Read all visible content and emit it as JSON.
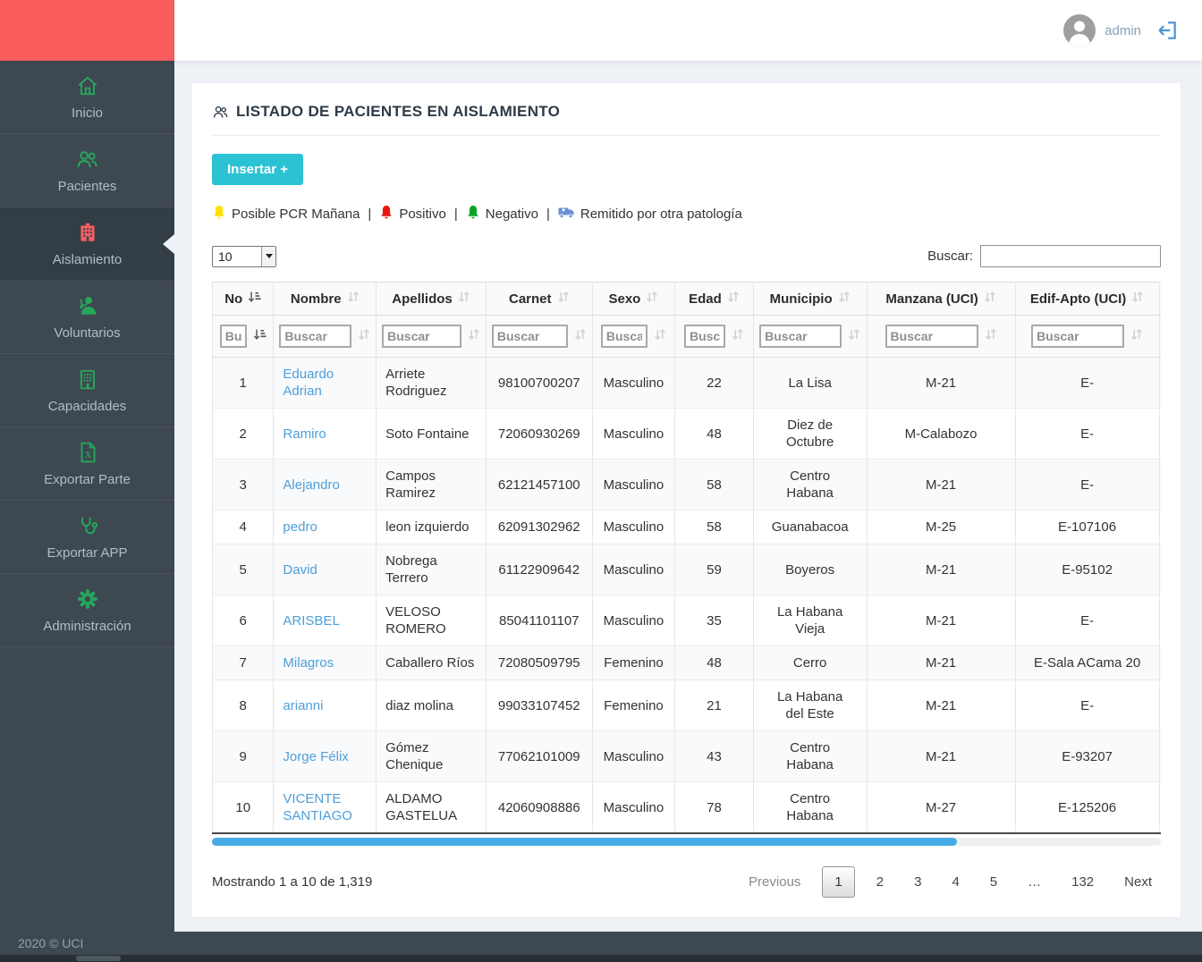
{
  "topbar": {
    "username": "admin"
  },
  "sidebar": {
    "items": [
      {
        "label": "Inicio",
        "icon": "home-icon",
        "active": false
      },
      {
        "label": "Pacientes",
        "icon": "patients-icon",
        "active": false
      },
      {
        "label": "Aislamiento",
        "icon": "hospital-icon",
        "active": true
      },
      {
        "label": "Voluntarios",
        "icon": "volunteer-icon",
        "active": false
      },
      {
        "label": "Capacidades",
        "icon": "building-icon",
        "active": false
      },
      {
        "label": "Exportar Parte",
        "icon": "excel-file-icon",
        "active": false
      },
      {
        "label": "Exportar APP",
        "icon": "stethoscope-icon",
        "active": false
      },
      {
        "label": "Administración",
        "icon": "gear-icon",
        "active": false
      }
    ],
    "colors": {
      "bg": "#3e4851",
      "accent_green": "#26a65b",
      "accent_red": "#f55f5f",
      "brand_red": "#f85c5c"
    }
  },
  "page": {
    "title": "LISTADO DE PACIENTES EN AISLAMIENTO",
    "insert_button": "Insertar +",
    "legend": {
      "separator": "|",
      "items": [
        {
          "icon": "bell-icon",
          "color": "#ffe100",
          "label": "Posible PCR Mañana"
        },
        {
          "icon": "bell-icon",
          "color": "#ee1313",
          "label": "Positivo"
        },
        {
          "icon": "bell-icon",
          "color": "#0ea423",
          "label": "Negativo"
        },
        {
          "icon": "ambulance-icon",
          "color": "#6b8fd4",
          "label": "Remitido por otra patología"
        }
      ]
    },
    "length_select": {
      "value": "10"
    },
    "search": {
      "label": "Buscar:",
      "value": "",
      "placeholder": ""
    },
    "table": {
      "columns": [
        "No",
        "Nombre",
        "Apellidos",
        "Carnet",
        "Sexo",
        "Edad",
        "Municipio",
        "Manzana (UCI)",
        "Edif-Apto (UCI)"
      ],
      "sorted_column": "No",
      "filter_placeholder": "Buscar",
      "rows": [
        [
          "1",
          "Eduardo Adrian",
          "Arriete Rodriguez",
          "98100700207",
          "Masculino",
          "22",
          "La Lisa",
          "M-21",
          "E-"
        ],
        [
          "2",
          "Ramiro",
          "Soto Fontaine",
          "72060930269",
          "Masculino",
          "48",
          "Diez de Octubre",
          "M-Calabozo",
          "E-"
        ],
        [
          "3",
          "Alejandro",
          "Campos Ramirez",
          "62121457100",
          "Masculino",
          "58",
          "Centro Habana",
          "M-21",
          "E-"
        ],
        [
          "4",
          "pedro",
          "leon izquierdo",
          "62091302962",
          "Masculino",
          "58",
          "Guanabacoa",
          "M-25",
          "E-107106"
        ],
        [
          "5",
          "David",
          "Nobrega Terrero",
          "61122909642",
          "Masculino",
          "59",
          "Boyeros",
          "M-21",
          "E-95102"
        ],
        [
          "6",
          "ARISBEL",
          "VELOSO ROMERO",
          "85041101107",
          "Masculino",
          "35",
          "La Habana Vieja",
          "M-21",
          "E-"
        ],
        [
          "7",
          "Milagros",
          "Caballero Ríos",
          "72080509795",
          "Femenino",
          "48",
          "Cerro",
          "M-21",
          "E-Sala ACama 20"
        ],
        [
          "8",
          "arianni",
          "diaz molina",
          "99033107452",
          "Femenino",
          "21",
          "La Habana del Este",
          "M-21",
          "E-"
        ],
        [
          "9",
          "Jorge Félix",
          "Gómez Chenique",
          "77062101009",
          "Masculino",
          "43",
          "Centro Habana",
          "M-21",
          "E-93207"
        ],
        [
          "10",
          "VICENTE SANTIAGO",
          "ALDAMO GASTELUA",
          "42060908886",
          "Masculino",
          "78",
          "Centro Habana",
          "M-27",
          "E-125206"
        ]
      ]
    },
    "info": "Mostrando 1 a 10 de 1,319",
    "pagination": {
      "previous": "Previous",
      "pages": [
        "1",
        "2",
        "3",
        "4",
        "5",
        "…",
        "132"
      ],
      "active_page": "1",
      "next": "Next"
    }
  },
  "footer": {
    "text": "2020 © UCI"
  }
}
